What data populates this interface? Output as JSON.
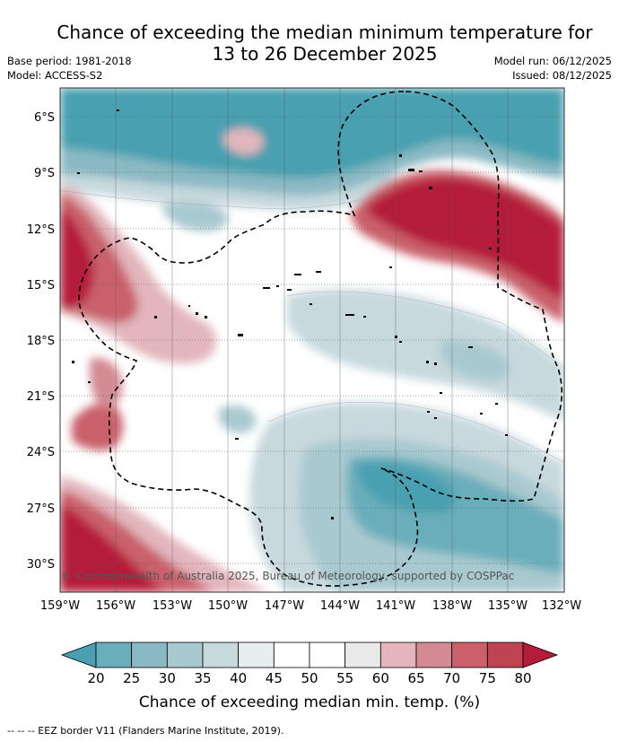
{
  "title_line1": "Chance of exceeding the median minimum temperature for",
  "title_line2": "13 to 26 December 2025",
  "meta_left": {
    "base_period": "Base period: 1981-2018",
    "model": "Model: ACCESS-S2"
  },
  "meta_right": {
    "model_run": "Model run: 06/12/2025",
    "issued": "Issued: 08/12/2025"
  },
  "map": {
    "lat_labels": [
      "6°S",
      "9°S",
      "12°S",
      "15°S",
      "18°S",
      "21°S",
      "24°S",
      "27°S",
      "30°S"
    ],
    "lon_labels": [
      "159°W",
      "156°W",
      "153°W",
      "150°W",
      "147°W",
      "144°W",
      "141°W",
      "138°W",
      "135°W",
      "132°W"
    ],
    "copyright": "© Commonwealth of Australia 2025, Bureau of Meteorology, supported by COSPPac"
  },
  "colorbar": {
    "ticks": [
      "20",
      "25",
      "30",
      "35",
      "40",
      "45",
      "50",
      "55",
      "60",
      "65",
      "70",
      "75",
      "80"
    ],
    "colors": [
      "#6aaebb",
      "#8ab9c4",
      "#a9c9d0",
      "#c8d9de",
      "#e8eef0",
      "#ffffff",
      "#ffffff",
      "#eaeaea",
      "#e2b6bc",
      "#d48a93",
      "#c9606b",
      "#bf4452"
    ],
    "under_color": "#4aa0b0",
    "over_color": "#b51c3a",
    "label": "Chance of exceeding median min. temp. (%)"
  },
  "footer": "--  --  -- EEZ border V11 (Flanders Marine Institute, 2019)."
}
